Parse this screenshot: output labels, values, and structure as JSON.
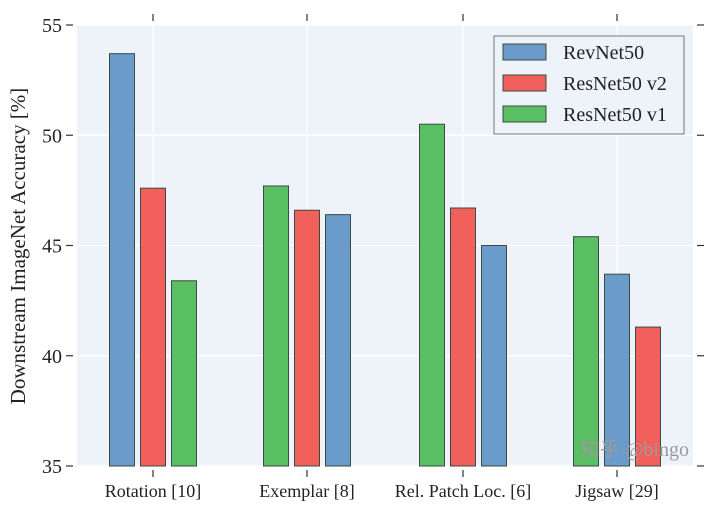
{
  "chart_data": {
    "type": "bar",
    "title": "",
    "xlabel": "",
    "ylabel": "Downstream ImageNet Accuracy [%]",
    "ylim": [
      35,
      55
    ],
    "yticks": [
      35,
      40,
      45,
      50,
      55
    ],
    "grid": true,
    "legend_position": "top-right",
    "categories": [
      "Rotation [10]",
      "Exemplar [8]",
      "Rel. Patch Loc. [6]",
      "Jigsaw [29]"
    ],
    "bar_order_within_group": "descending by value",
    "series": [
      {
        "name": "RevNet50",
        "color": "#6a9bcb",
        "values": [
          53.7,
          46.4,
          45.0,
          43.7
        ]
      },
      {
        "name": "ResNet50 v2",
        "color": "#f2605c",
        "values": [
          47.6,
          46.6,
          46.7,
          41.3
        ]
      },
      {
        "name": "ResNet50 v1",
        "color": "#5abf62",
        "values": [
          43.4,
          47.7,
          50.5,
          45.4
        ]
      }
    ]
  },
  "watermark": "知乎 @bingo",
  "colors": {
    "plot_background": "#eef3fa",
    "grid": "#ffffff",
    "bar_edge": "#3a4a44"
  }
}
